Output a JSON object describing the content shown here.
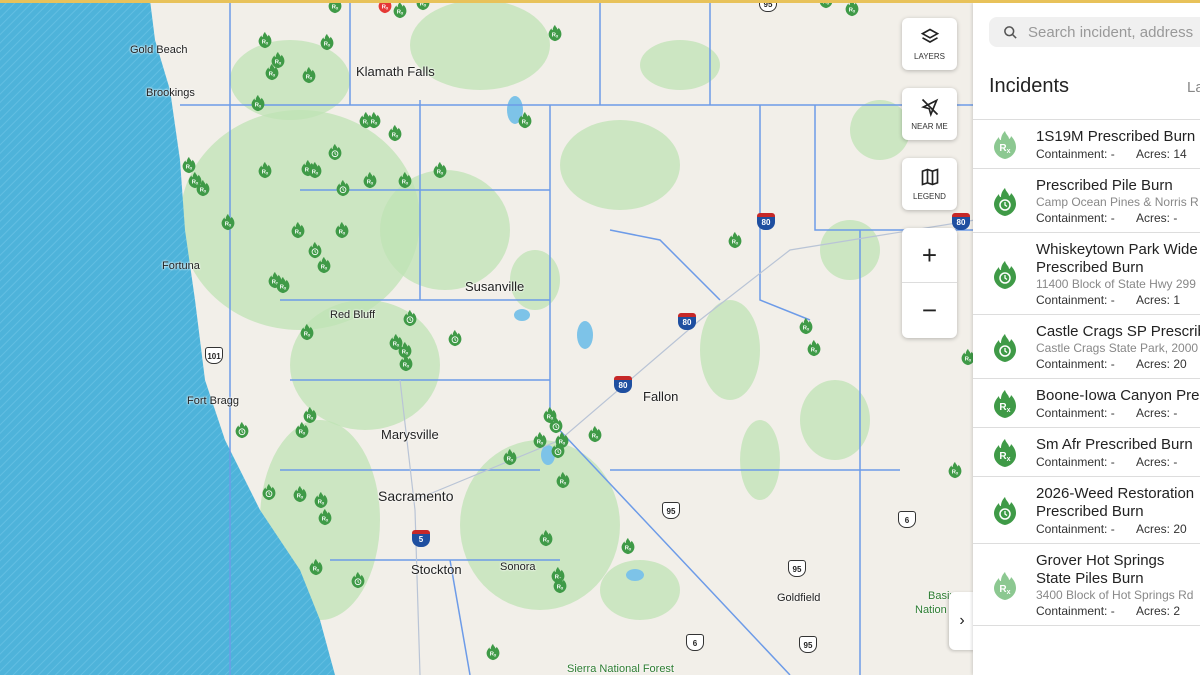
{
  "map": {
    "cities": [
      {
        "name": "Gold Beach",
        "size": "small"
      },
      {
        "name": "Klamath Falls",
        "size": "big"
      },
      {
        "name": "Brookings",
        "size": "small"
      },
      {
        "name": "Fortuna",
        "size": "small"
      },
      {
        "name": "Susanville",
        "size": "big"
      },
      {
        "name": "Red Bluff",
        "size": "small"
      },
      {
        "name": "Fort Bragg",
        "size": "small"
      },
      {
        "name": "Marysville",
        "size": "big"
      },
      {
        "name": "Fallon",
        "size": "big"
      },
      {
        "name": "Sacramento",
        "size": "xl"
      },
      {
        "name": "Stockton",
        "size": "big"
      },
      {
        "name": "Sonora",
        "size": "small"
      },
      {
        "name": "Goldfield",
        "size": "small"
      },
      {
        "name": "Sierra National Forest",
        "size": "park"
      },
      {
        "name": "Basin",
        "size": "park"
      },
      {
        "name": "Nation",
        "size": "park"
      }
    ],
    "shields": [
      {
        "num": "95",
        "type": "us"
      },
      {
        "num": "101",
        "type": "us"
      },
      {
        "num": "5",
        "type": "i"
      },
      {
        "num": "80",
        "type": "i"
      },
      {
        "num": "80",
        "type": "i"
      },
      {
        "num": "80",
        "type": "i"
      },
      {
        "num": "80",
        "type": "i"
      },
      {
        "num": "95",
        "type": "us"
      },
      {
        "num": "95",
        "type": "us"
      },
      {
        "num": "95",
        "type": "us"
      },
      {
        "num": "6",
        "type": "us"
      },
      {
        "num": "6",
        "type": "us"
      }
    ],
    "colors": {
      "ocean": "#4eb3da",
      "land": "#f2efe9",
      "forest": "#bfe3b4",
      "boundary": "#6d9be8",
      "marker": "#3f9a47",
      "marker_faded": "#8cc891",
      "active_fire": "#e53935"
    }
  },
  "controls": {
    "layers": {
      "label": "LAYERS",
      "icon": "layers-icon"
    },
    "near_me": {
      "label": "NEAR ME",
      "icon": "location-off-icon"
    },
    "legend": {
      "label": "LEGEND",
      "icon": "map-icon"
    },
    "zoom_in": "+",
    "zoom_out": "−",
    "collapse": "›"
  },
  "panel": {
    "search_placeholder": "Search incident, address",
    "heading": "Incidents",
    "sort_label": "La",
    "incidents": [
      {
        "title": "1S19M Prescribed Burn",
        "address": "",
        "containment": "Containment: -",
        "acres": "Acres: 14",
        "icon": "rx",
        "faded": true
      },
      {
        "title": "Prescribed Pile Burn",
        "address": "Camp Ocean Pines & Norris R",
        "containment": "Containment: -",
        "acres": "Acres: -",
        "icon": "clock",
        "faded": false
      },
      {
        "title": "Whiskeytown Park Wide Prescribed Burn",
        "address": "11400 Block of State Hwy 299",
        "containment": "Containment: -",
        "acres": "Acres: 1",
        "icon": "clock",
        "faded": false
      },
      {
        "title": "Castle Crags SP Prescribed",
        "address": "Castle Crags State Park, 2000",
        "containment": "Containment: -",
        "acres": "Acres: 20",
        "icon": "clock",
        "faded": false
      },
      {
        "title": "Boone-Iowa Canyon Pre",
        "address": "",
        "containment": "Containment: -",
        "acres": "Acres: -",
        "icon": "rx",
        "faded": false
      },
      {
        "title": "Sm Afr Prescribed Burn",
        "address": "",
        "containment": "Containment: -",
        "acres": "Acres: -",
        "icon": "rx",
        "faded": false
      },
      {
        "title": "2026-Weed Restoration Prescribed Burn",
        "address": "",
        "containment": "Containment: -",
        "acres": "Acres: 20",
        "icon": "clock",
        "faded": false
      },
      {
        "title": "Grover Hot Springs State Piles Burn",
        "address": "3400 Block of Hot Springs Rd",
        "containment": "Containment: -",
        "acres": "Acres: 2",
        "icon": "rx",
        "faded": true
      }
    ]
  }
}
